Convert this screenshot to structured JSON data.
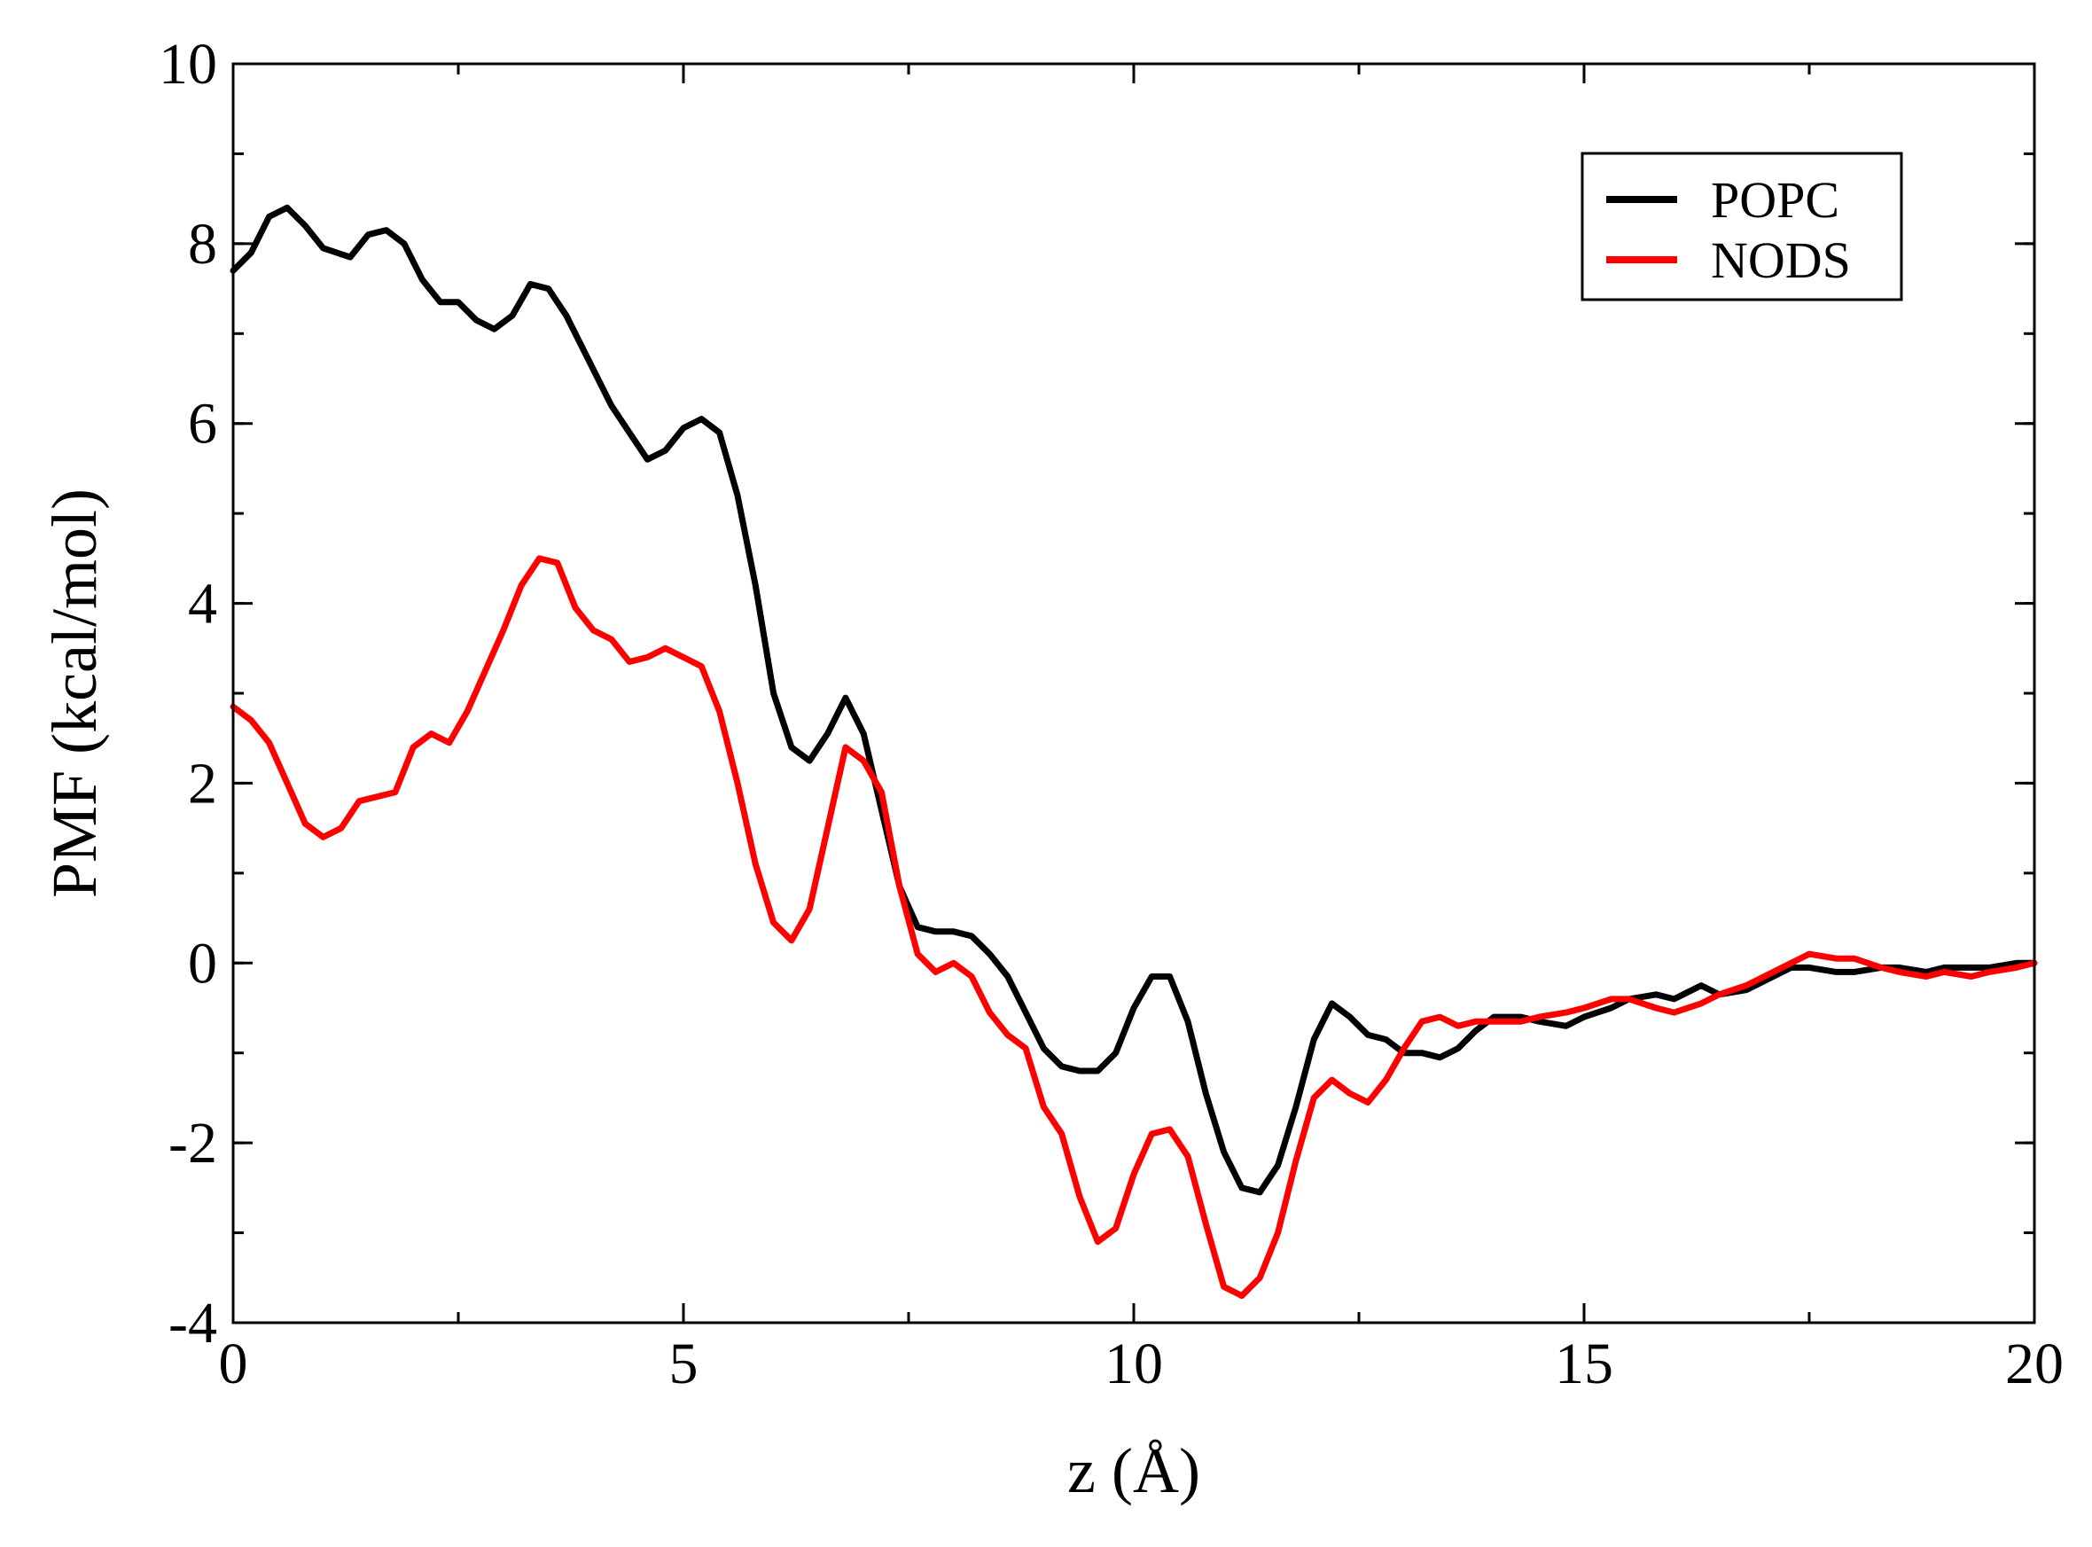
{
  "chart_data": {
    "type": "line",
    "title": "",
    "xlabel": "z (Å)",
    "ylabel": "PMF (kcal/mol)",
    "xlim": [
      0,
      20
    ],
    "ylim": [
      -4,
      10
    ],
    "x_ticks": [
      0,
      5,
      10,
      15,
      20
    ],
    "x_tick_labels": [
      "0",
      "5",
      "10",
      "15",
      "20"
    ],
    "y_ticks": [
      -4,
      -2,
      0,
      2,
      4,
      6,
      8,
      10
    ],
    "y_tick_labels": [
      "-4",
      "-2",
      "0",
      "2",
      "4",
      "6",
      "8",
      "10"
    ],
    "x_minor_step": 2.5,
    "y_minor_step": 1,
    "grid": false,
    "legend_position": "top-right",
    "series": [
      {
        "name": "POPC",
        "color": "#000000",
        "points": [
          [
            0.0,
            7.7
          ],
          [
            0.2,
            7.9
          ],
          [
            0.4,
            8.3
          ],
          [
            0.6,
            8.4
          ],
          [
            0.8,
            8.2
          ],
          [
            1.0,
            7.95
          ],
          [
            1.3,
            7.85
          ],
          [
            1.5,
            8.1
          ],
          [
            1.7,
            8.15
          ],
          [
            1.9,
            8.0
          ],
          [
            2.1,
            7.6
          ],
          [
            2.3,
            7.35
          ],
          [
            2.5,
            7.35
          ],
          [
            2.7,
            7.15
          ],
          [
            2.9,
            7.05
          ],
          [
            3.1,
            7.2
          ],
          [
            3.3,
            7.55
          ],
          [
            3.5,
            7.5
          ],
          [
            3.7,
            7.2
          ],
          [
            3.9,
            6.8
          ],
          [
            4.2,
            6.2
          ],
          [
            4.4,
            5.9
          ],
          [
            4.6,
            5.6
          ],
          [
            4.8,
            5.7
          ],
          [
            5.0,
            5.95
          ],
          [
            5.2,
            6.05
          ],
          [
            5.4,
            5.9
          ],
          [
            5.6,
            5.2
          ],
          [
            5.8,
            4.2
          ],
          [
            6.0,
            3.0
          ],
          [
            6.2,
            2.4
          ],
          [
            6.4,
            2.25
          ],
          [
            6.6,
            2.55
          ],
          [
            6.8,
            2.95
          ],
          [
            7.0,
            2.55
          ],
          [
            7.2,
            1.7
          ],
          [
            7.4,
            0.85
          ],
          [
            7.6,
            0.4
          ],
          [
            7.8,
            0.35
          ],
          [
            8.0,
            0.35
          ],
          [
            8.2,
            0.3
          ],
          [
            8.4,
            0.1
          ],
          [
            8.6,
            -0.15
          ],
          [
            8.8,
            -0.55
          ],
          [
            9.0,
            -0.95
          ],
          [
            9.2,
            -1.15
          ],
          [
            9.4,
            -1.2
          ],
          [
            9.6,
            -1.2
          ],
          [
            9.8,
            -1.0
          ],
          [
            10.0,
            -0.5
          ],
          [
            10.2,
            -0.15
          ],
          [
            10.4,
            -0.15
          ],
          [
            10.6,
            -0.65
          ],
          [
            10.8,
            -1.45
          ],
          [
            11.0,
            -2.1
          ],
          [
            11.2,
            -2.5
          ],
          [
            11.4,
            -2.55
          ],
          [
            11.6,
            -2.25
          ],
          [
            11.8,
            -1.6
          ],
          [
            12.0,
            -0.85
          ],
          [
            12.2,
            -0.45
          ],
          [
            12.4,
            -0.6
          ],
          [
            12.6,
            -0.8
          ],
          [
            12.8,
            -0.85
          ],
          [
            13.0,
            -1.0
          ],
          [
            13.2,
            -1.0
          ],
          [
            13.4,
            -1.05
          ],
          [
            13.6,
            -0.95
          ],
          [
            13.8,
            -0.75
          ],
          [
            14.0,
            -0.6
          ],
          [
            14.3,
            -0.6
          ],
          [
            14.5,
            -0.65
          ],
          [
            14.8,
            -0.7
          ],
          [
            15.0,
            -0.6
          ],
          [
            15.3,
            -0.5
          ],
          [
            15.5,
            -0.4
          ],
          [
            15.8,
            -0.35
          ],
          [
            16.0,
            -0.4
          ],
          [
            16.3,
            -0.25
          ],
          [
            16.5,
            -0.35
          ],
          [
            16.8,
            -0.3
          ],
          [
            17.0,
            -0.2
          ],
          [
            17.3,
            -0.05
          ],
          [
            17.5,
            -0.05
          ],
          [
            17.8,
            -0.1
          ],
          [
            18.0,
            -0.1
          ],
          [
            18.3,
            -0.05
          ],
          [
            18.5,
            -0.05
          ],
          [
            18.8,
            -0.1
          ],
          [
            19.0,
            -0.05
          ],
          [
            19.3,
            -0.05
          ],
          [
            19.5,
            -0.05
          ],
          [
            19.8,
            0.0
          ],
          [
            20.0,
            0.0
          ]
        ]
      },
      {
        "name": "NODS",
        "color": "#ff0000",
        "points": [
          [
            0.0,
            2.85
          ],
          [
            0.2,
            2.7
          ],
          [
            0.4,
            2.45
          ],
          [
            0.6,
            2.0
          ],
          [
            0.8,
            1.55
          ],
          [
            1.0,
            1.4
          ],
          [
            1.2,
            1.5
          ],
          [
            1.4,
            1.8
          ],
          [
            1.6,
            1.85
          ],
          [
            1.8,
            1.9
          ],
          [
            2.0,
            2.4
          ],
          [
            2.2,
            2.55
          ],
          [
            2.4,
            2.45
          ],
          [
            2.6,
            2.8
          ],
          [
            2.8,
            3.25
          ],
          [
            3.0,
            3.7
          ],
          [
            3.2,
            4.2
          ],
          [
            3.4,
            4.5
          ],
          [
            3.6,
            4.45
          ],
          [
            3.8,
            3.95
          ],
          [
            4.0,
            3.7
          ],
          [
            4.2,
            3.6
          ],
          [
            4.4,
            3.35
          ],
          [
            4.6,
            3.4
          ],
          [
            4.8,
            3.5
          ],
          [
            5.0,
            3.4
          ],
          [
            5.2,
            3.3
          ],
          [
            5.4,
            2.8
          ],
          [
            5.6,
            2.0
          ],
          [
            5.8,
            1.1
          ],
          [
            6.0,
            0.45
          ],
          [
            6.2,
            0.25
          ],
          [
            6.4,
            0.6
          ],
          [
            6.6,
            1.5
          ],
          [
            6.8,
            2.4
          ],
          [
            7.0,
            2.25
          ],
          [
            7.2,
            1.9
          ],
          [
            7.4,
            0.85
          ],
          [
            7.6,
            0.1
          ],
          [
            7.8,
            -0.1
          ],
          [
            8.0,
            0.0
          ],
          [
            8.2,
            -0.15
          ],
          [
            8.4,
            -0.55
          ],
          [
            8.6,
            -0.8
          ],
          [
            8.8,
            -0.95
          ],
          [
            9.0,
            -1.6
          ],
          [
            9.2,
            -1.9
          ],
          [
            9.4,
            -2.6
          ],
          [
            9.6,
            -3.1
          ],
          [
            9.8,
            -2.95
          ],
          [
            10.0,
            -2.35
          ],
          [
            10.2,
            -1.9
          ],
          [
            10.4,
            -1.85
          ],
          [
            10.6,
            -2.15
          ],
          [
            10.8,
            -2.9
          ],
          [
            11.0,
            -3.6
          ],
          [
            11.2,
            -3.7
          ],
          [
            11.4,
            -3.5
          ],
          [
            11.6,
            -3.0
          ],
          [
            11.8,
            -2.2
          ],
          [
            12.0,
            -1.5
          ],
          [
            12.2,
            -1.3
          ],
          [
            12.4,
            -1.45
          ],
          [
            12.6,
            -1.55
          ],
          [
            12.8,
            -1.3
          ],
          [
            13.0,
            -0.95
          ],
          [
            13.2,
            -0.65
          ],
          [
            13.4,
            -0.6
          ],
          [
            13.6,
            -0.7
          ],
          [
            13.8,
            -0.65
          ],
          [
            14.0,
            -0.65
          ],
          [
            14.3,
            -0.65
          ],
          [
            14.5,
            -0.6
          ],
          [
            14.8,
            -0.55
          ],
          [
            15.0,
            -0.5
          ],
          [
            15.3,
            -0.4
          ],
          [
            15.5,
            -0.4
          ],
          [
            15.8,
            -0.5
          ],
          [
            16.0,
            -0.55
          ],
          [
            16.3,
            -0.45
          ],
          [
            16.5,
            -0.35
          ],
          [
            16.8,
            -0.25
          ],
          [
            17.0,
            -0.15
          ],
          [
            17.3,
            0.0
          ],
          [
            17.5,
            0.1
          ],
          [
            17.8,
            0.05
          ],
          [
            18.0,
            0.05
          ],
          [
            18.3,
            -0.05
          ],
          [
            18.5,
            -0.1
          ],
          [
            18.8,
            -0.15
          ],
          [
            19.0,
            -0.1
          ],
          [
            19.3,
            -0.15
          ],
          [
            19.5,
            -0.1
          ],
          [
            19.8,
            -0.05
          ],
          [
            20.0,
            0.0
          ]
        ]
      }
    ]
  }
}
